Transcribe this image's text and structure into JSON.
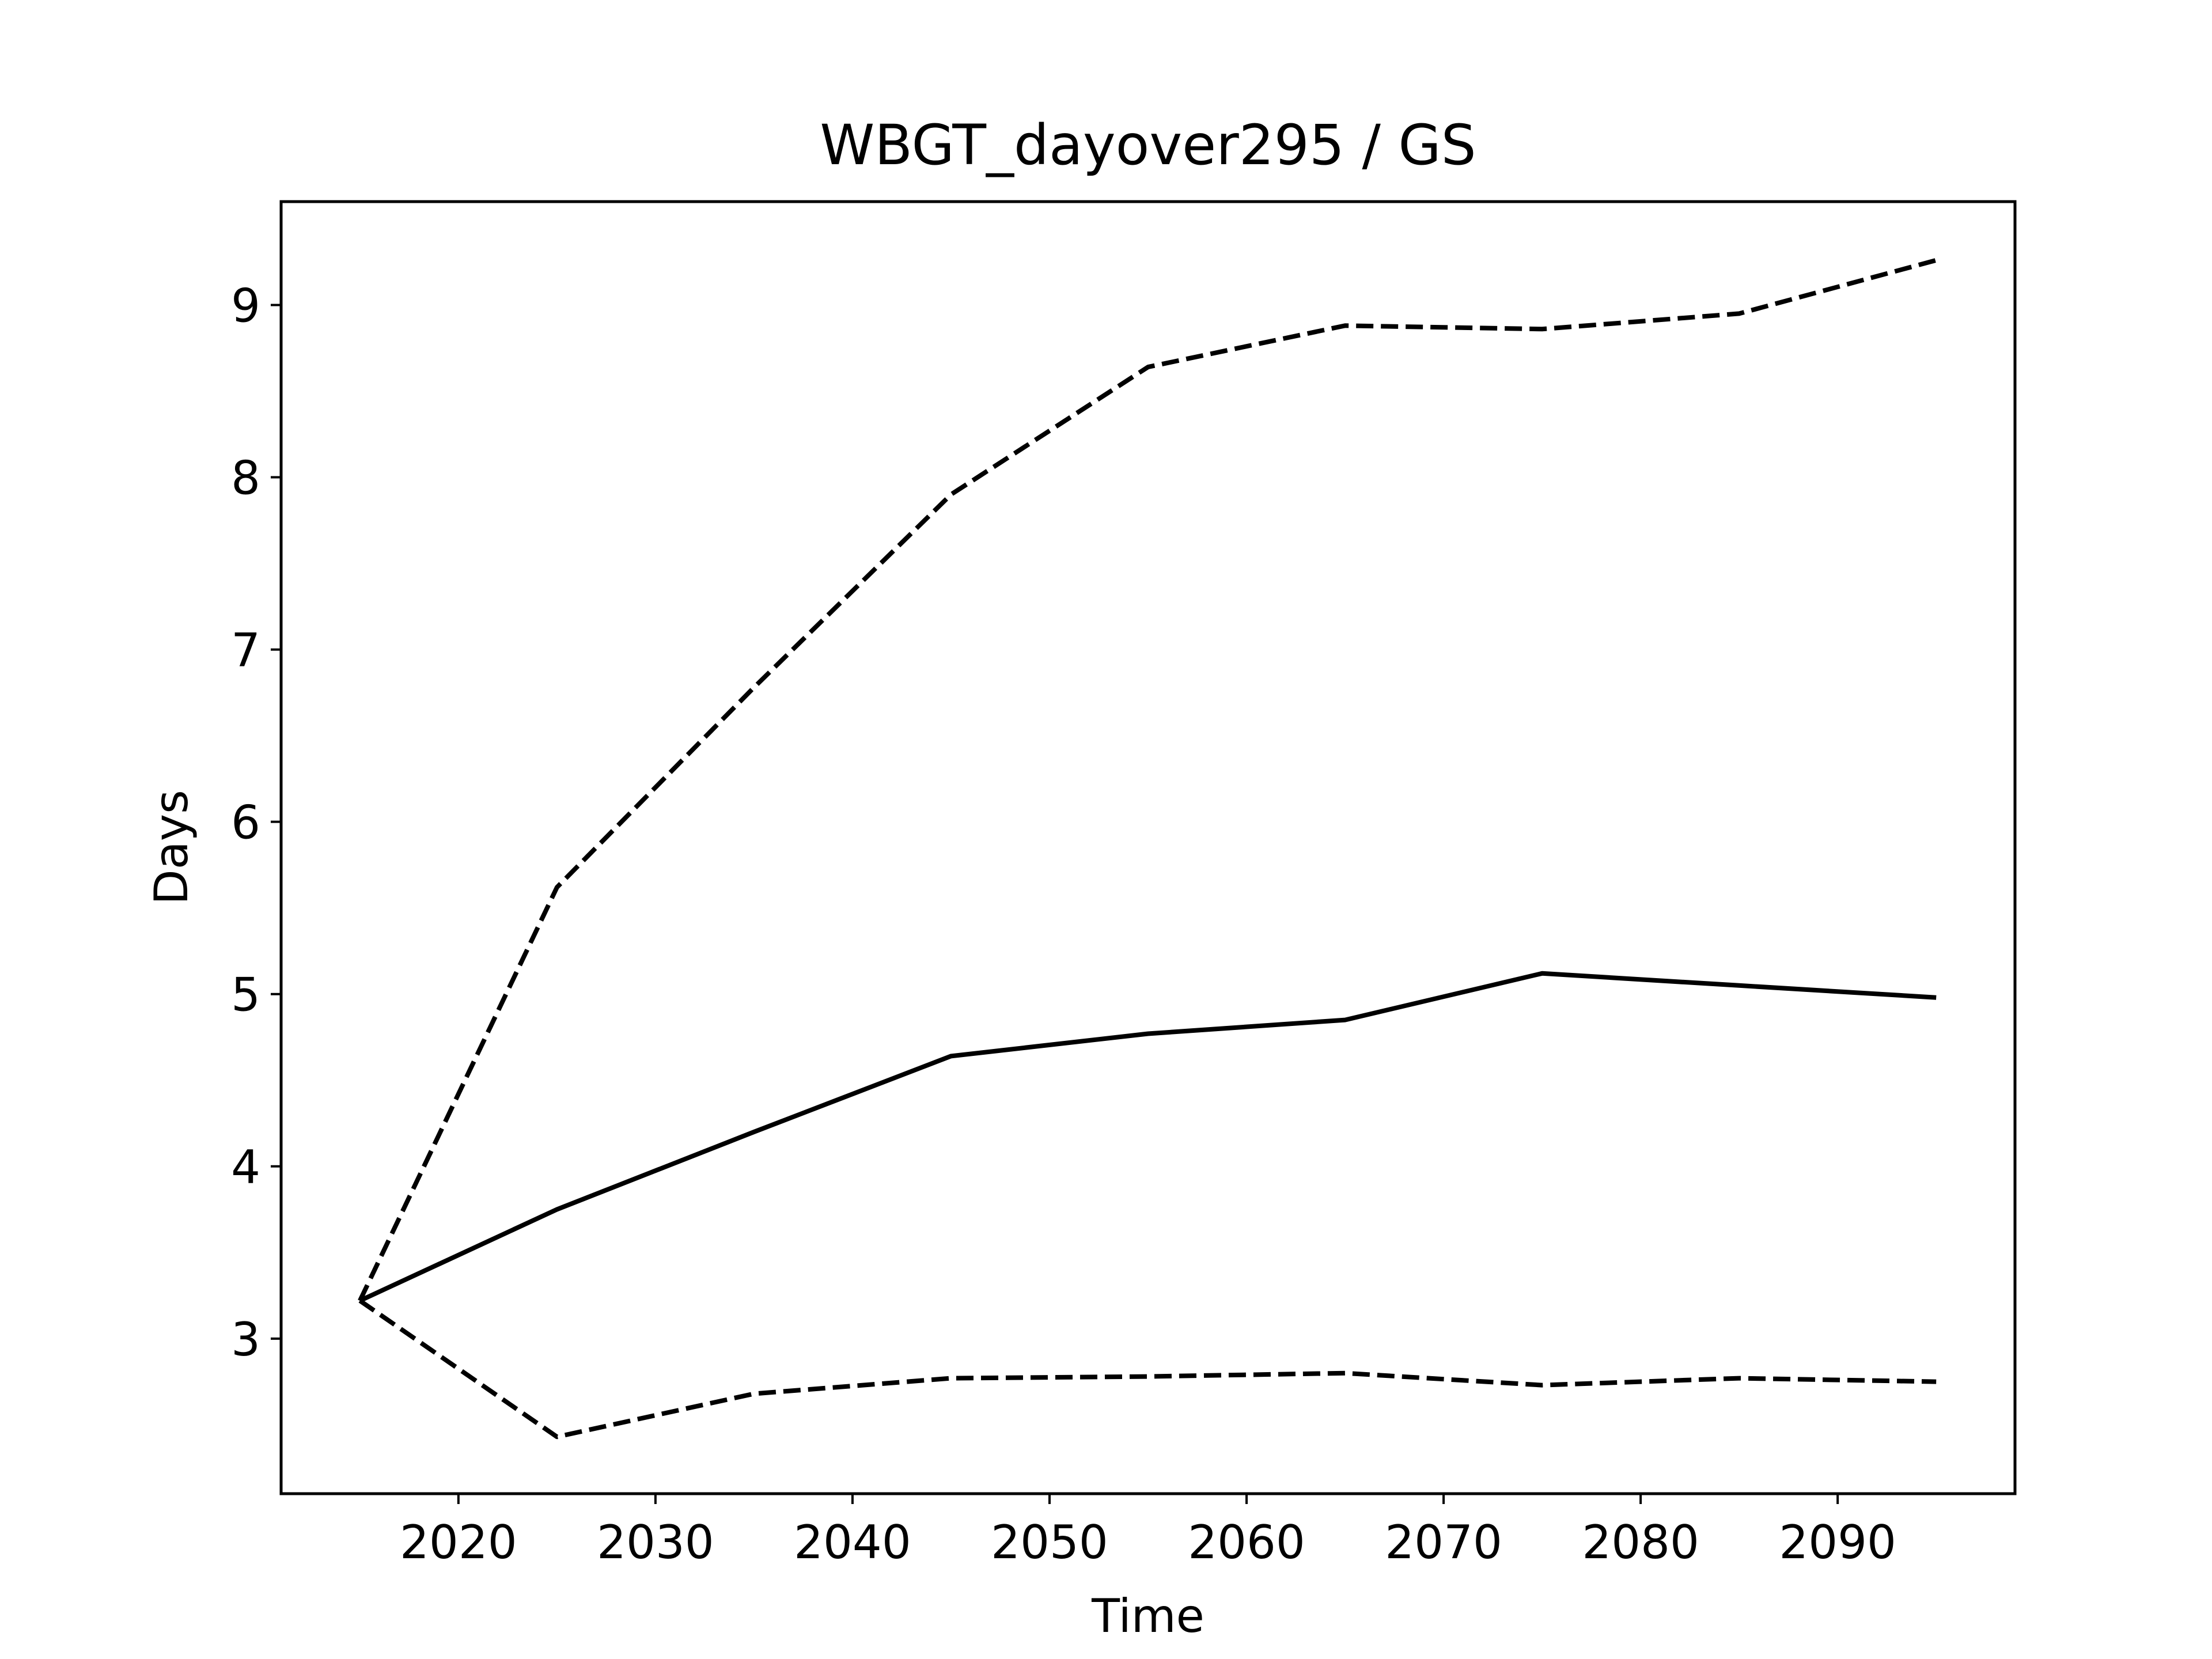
{
  "chart_data": {
    "type": "line",
    "title": "WBGT_dayover295 / GS",
    "xlabel": "Time",
    "ylabel": "Days",
    "xlim": [
      2011,
      2099
    ],
    "ylim": [
      2.1,
      9.6
    ],
    "xticks": [
      2020,
      2030,
      2040,
      2050,
      2060,
      2070,
      2080,
      2090
    ],
    "yticks": [
      3,
      4,
      5,
      6,
      7,
      8,
      9
    ],
    "grid": false,
    "x": [
      2015,
      2025,
      2035,
      2045,
      2055,
      2065,
      2075,
      2085,
      2095
    ],
    "series": [
      {
        "style": "solid",
        "color": "#000000",
        "values": [
          3.22,
          3.75,
          4.2,
          4.64,
          4.77,
          4.85,
          5.12,
          5.05,
          4.98
        ]
      },
      {
        "style": "dashed",
        "color": "#000000",
        "values": [
          3.22,
          5.62,
          6.78,
          7.9,
          8.64,
          8.88,
          8.86,
          8.95,
          9.26
        ]
      },
      {
        "style": "dashed",
        "color": "#000000",
        "values": [
          3.22,
          2.43,
          2.68,
          2.77,
          2.78,
          2.8,
          2.73,
          2.77,
          2.75
        ]
      }
    ]
  }
}
